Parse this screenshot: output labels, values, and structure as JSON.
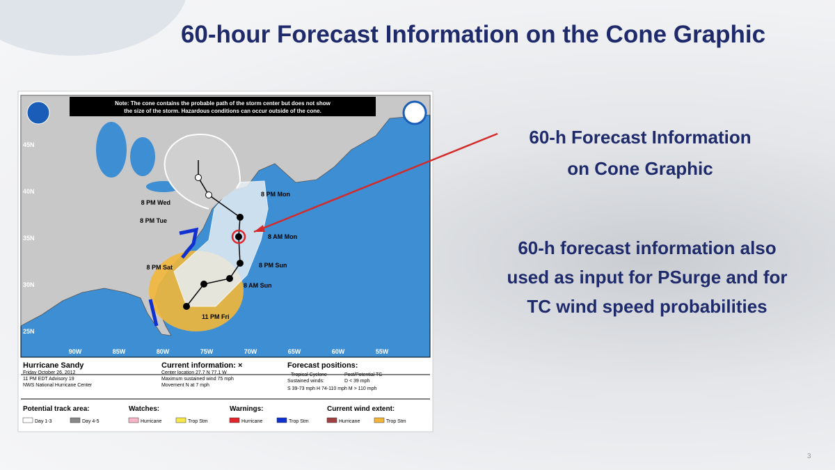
{
  "slide": {
    "title": "60-hour Forecast Information on the Cone Graphic",
    "callout": [
      "60-h Forecast Information",
      "on Cone Graphic"
    ],
    "body": [
      "60-h forecast information also",
      "used as input for PSurge and for",
      "TC wind speed probabilities"
    ],
    "page_number": "3"
  },
  "map": {
    "note": [
      "Note: The cone contains the probable path of the storm center but does not show",
      "the size of the storm. Hazardous conditions can occur outside of the cone."
    ],
    "latitudes": [
      "45N",
      "40N",
      "35N",
      "30N",
      "25N"
    ],
    "longitudes": [
      "90W",
      "85W",
      "80W",
      "75W",
      "70W",
      "65W",
      "60W",
      "55W"
    ],
    "forecast_points": [
      "11 PM Fri",
      "8 PM Sat",
      "8 AM Sun",
      "8 PM Sun",
      "8 AM Mon",
      "8 PM Mon",
      "8 PM Tue",
      "8 PM Wed"
    ],
    "storm": [
      "Hurricane Sandy",
      "Friday October 26, 2012",
      "11 PM EDT Advisory 19",
      "NWS National Hurricane Center"
    ],
    "current_info": [
      "Current information: ×",
      "Center location 27.7 N 77.1 W",
      "Maximum sustained wind 75 mph",
      "Movement N at 7 mph"
    ],
    "forecast_positions": [
      "Forecast positions:",
      "Tropical Cyclone",
      "Post/Potential TC",
      "Sustained winds:",
      "D < 39 mph",
      "S 39-73 mph  H 74-110 mph  M > 110 mph"
    ],
    "legend": {
      "track": [
        "Potential track area:",
        "Day 1-3",
        "Day 4-5"
      ],
      "watches": [
        "Watches:",
        "Hurricane",
        "Trop Stm"
      ],
      "warnings": [
        "Warnings:",
        "Hurricane",
        "Trop Stm"
      ],
      "wind": [
        "Current wind extent:",
        "Hurricane",
        "Trop Stm"
      ]
    }
  }
}
